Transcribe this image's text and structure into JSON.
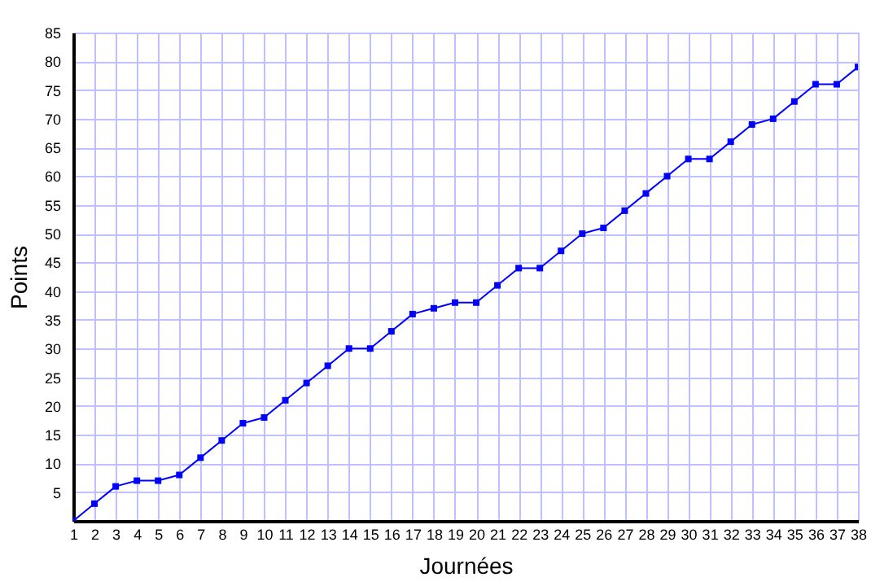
{
  "chart_data": {
    "type": "line",
    "xlabel": "Journées",
    "ylabel": "Points",
    "x": [
      1,
      2,
      3,
      4,
      5,
      6,
      7,
      8,
      9,
      10,
      11,
      12,
      13,
      14,
      15,
      16,
      17,
      18,
      19,
      20,
      21,
      22,
      23,
      24,
      25,
      26,
      27,
      28,
      29,
      30,
      31,
      32,
      33,
      34,
      35,
      36,
      37,
      38
    ],
    "series": [
      {
        "color": "#0000ff",
        "values": [
          0,
          3,
          6,
          7,
          7,
          8,
          11,
          14,
          17,
          18,
          21,
          24,
          27,
          30,
          30,
          33,
          36,
          37,
          38,
          38,
          41,
          44,
          44,
          47,
          50,
          51,
          54,
          57,
          60,
          63,
          63,
          66,
          69,
          70,
          73,
          76,
          76,
          79
        ]
      }
    ],
    "xlim": [
      1,
      38
    ],
    "xticks": [
      1,
      2,
      3,
      4,
      5,
      6,
      7,
      8,
      9,
      10,
      11,
      12,
      13,
      14,
      15,
      16,
      17,
      18,
      19,
      20,
      21,
      22,
      23,
      24,
      25,
      26,
      27,
      28,
      29,
      30,
      31,
      32,
      33,
      34,
      35,
      36,
      37,
      38
    ],
    "ylim": [
      0,
      85
    ],
    "yticks": [
      5,
      10,
      15,
      20,
      25,
      30,
      35,
      40,
      45,
      50,
      55,
      60,
      65,
      70,
      75,
      80,
      85
    ],
    "grid": true,
    "marker": "square",
    "line_style": "solid"
  }
}
